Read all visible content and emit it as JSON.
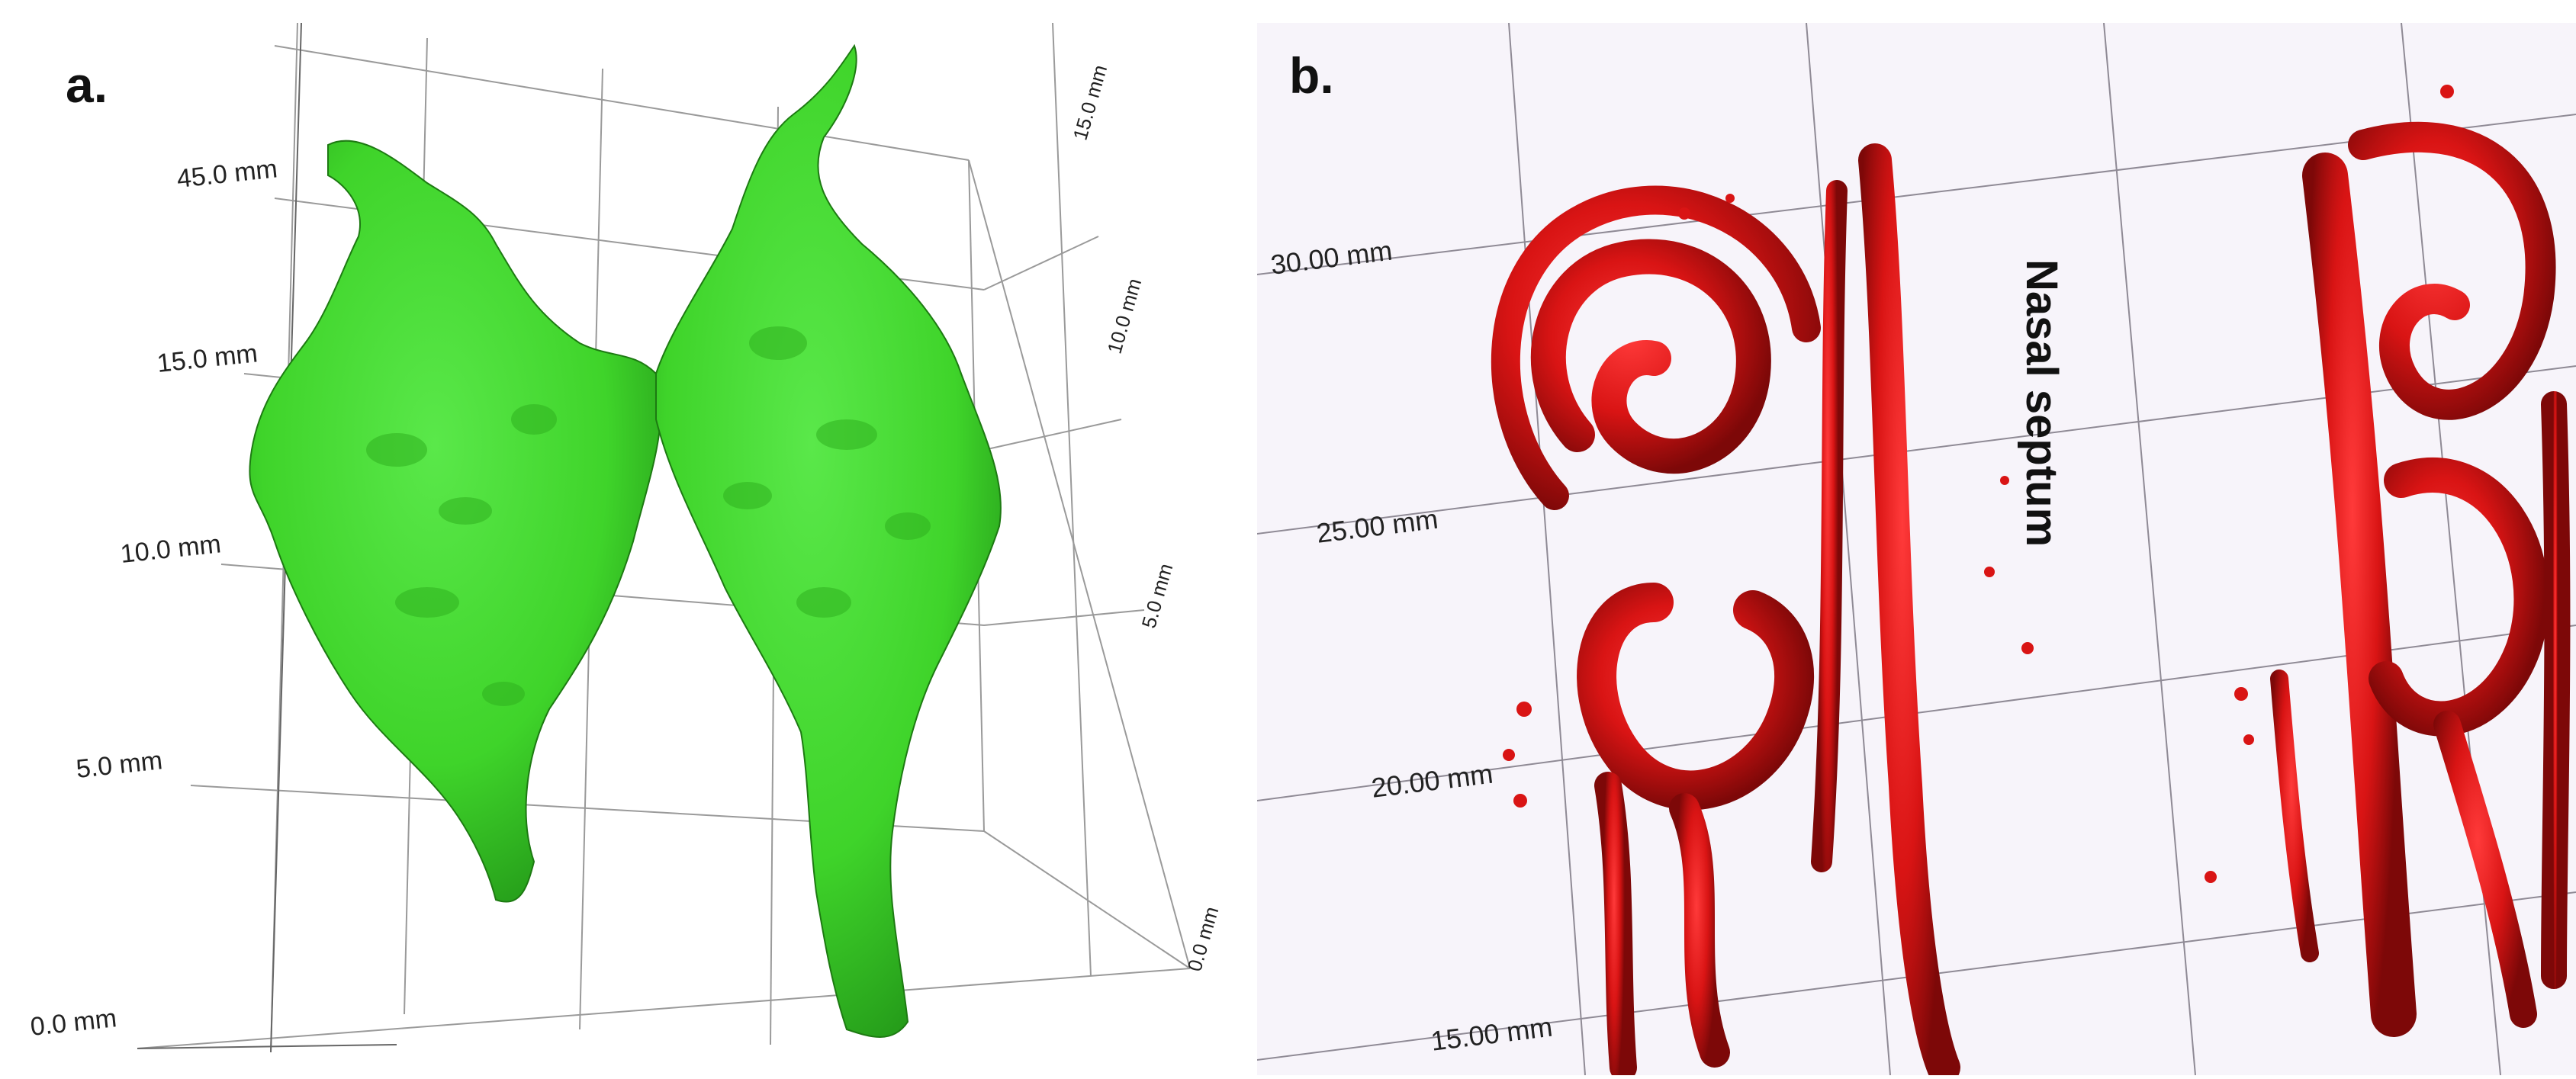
{
  "panels": [
    {
      "label": "a.",
      "structure_color": "#3fd42a",
      "left_ticks": [
        "45.0 mm",
        "15.0 mm",
        "10.0 mm",
        "5.0 mm",
        "0.0 mm"
      ],
      "right_ticks": [
        "15.0 mm",
        "10.0 mm",
        "5.0 mm",
        "0.0 mm"
      ]
    },
    {
      "label": "b.",
      "structure_color": "#d91414",
      "left_ticks": [
        "30.00 mm",
        "25.00 mm",
        "20.00 mm",
        "15.00 mm"
      ],
      "annotation": "Nasal septum"
    }
  ]
}
